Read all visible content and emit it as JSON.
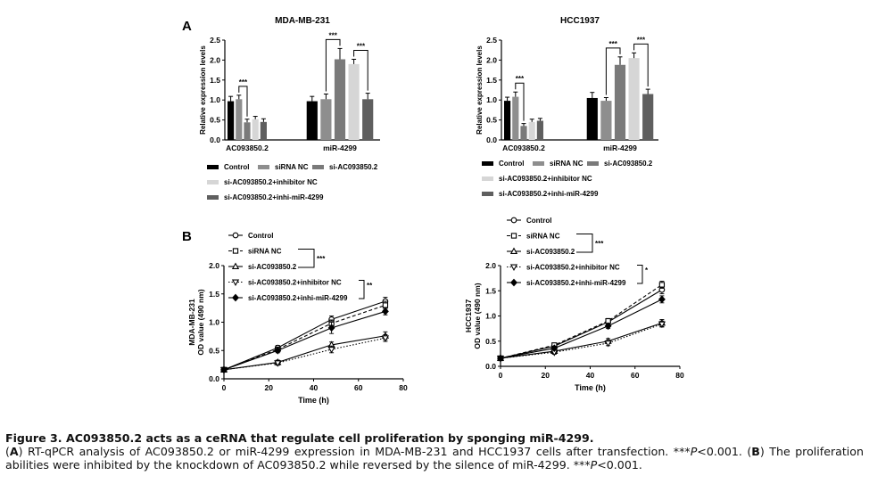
{
  "chart_data": [
    {
      "id": "A1",
      "type": "bar",
      "panel_label": "A",
      "title": "MDA-MB-231",
      "xlabel": "",
      "ylabel": "Relative expression levels",
      "ylim": [
        0,
        2.5
      ],
      "yticks": [
        "0.0",
        "0.5",
        "1.0",
        "1.5",
        "2.0",
        "2.5"
      ],
      "categories": [
        "AC093850.2",
        "miR-4299"
      ],
      "series": [
        {
          "name": "Control",
          "color": "#000000",
          "values": [
            0.97,
            0.97
          ],
          "errors": [
            0.12,
            0.12
          ]
        },
        {
          "name": "siRNA NC",
          "color": "#8e8e8e",
          "values": [
            1.02,
            1.02
          ],
          "errors": [
            0.1,
            0.13
          ]
        },
        {
          "name": "si-AC093850.2",
          "color": "#7a7a7a",
          "values": [
            0.44,
            2.02
          ],
          "errors": [
            0.08,
            0.27
          ]
        },
        {
          "name": "si-AC093850.2+inhibitor NC",
          "color": "#d6d6d6",
          "values": [
            0.52,
            1.9
          ],
          "errors": [
            0.07,
            0.12
          ]
        },
        {
          "name": "si-AC093850.2+inhi-miR-4299",
          "color": "#5f5f5f",
          "values": [
            0.45,
            1.02
          ],
          "errors": [
            0.08,
            0.15
          ]
        }
      ],
      "significance": [
        {
          "group": 0,
          "from": 1,
          "to": 2,
          "label": "***"
        },
        {
          "group": 1,
          "from": 1,
          "to": 2,
          "label": "***"
        },
        {
          "group": 1,
          "from": 3,
          "to": 4,
          "label": "***"
        }
      ],
      "legend_position": "below"
    },
    {
      "id": "A2",
      "type": "bar",
      "title": "HCC1937",
      "xlabel": "",
      "ylabel": "Relative expression levels",
      "ylim": [
        0,
        2.5
      ],
      "yticks": [
        "0.0",
        "0.5",
        "1.0",
        "1.5",
        "2.0",
        "2.5"
      ],
      "categories": [
        "AC093850.2",
        "miR-4299"
      ],
      "series": [
        {
          "name": "Control",
          "color": "#000000",
          "values": [
            0.98,
            1.05
          ],
          "errors": [
            0.09,
            0.14
          ]
        },
        {
          "name": "siRNA NC",
          "color": "#8e8e8e",
          "values": [
            1.08,
            0.98
          ],
          "errors": [
            0.12,
            0.08
          ]
        },
        {
          "name": "si-AC093850.2",
          "color": "#7a7a7a",
          "values": [
            0.35,
            1.88
          ],
          "errors": [
            0.06,
            0.2
          ]
        },
        {
          "name": "si-AC093850.2+inhibitor NC",
          "color": "#d6d6d6",
          "values": [
            0.45,
            2.05
          ],
          "errors": [
            0.07,
            0.13
          ]
        },
        {
          "name": "si-AC093850.2+inhi-miR-4299",
          "color": "#5f5f5f",
          "values": [
            0.48,
            1.15
          ],
          "errors": [
            0.06,
            0.12
          ]
        }
      ],
      "significance": [
        {
          "group": 0,
          "from": 1,
          "to": 2,
          "label": "***"
        },
        {
          "group": 1,
          "from": 1,
          "to": 2,
          "label": "***"
        },
        {
          "group": 1,
          "from": 3,
          "to": 4,
          "label": "***"
        }
      ],
      "legend_position": "below"
    },
    {
      "id": "B1",
      "type": "line",
      "panel_label": "B",
      "title": "",
      "xlabel": "Time (h)",
      "ylabel": "OD value (490 nm)",
      "ylabel_prefix": "MDA-MB-231",
      "xlim": [
        0,
        80
      ],
      "ylim": [
        0,
        2.0
      ],
      "xticks": [
        "0",
        "20",
        "40",
        "60",
        "80"
      ],
      "yticks": [
        "0.0",
        "0.5",
        "1.0",
        "1.5",
        "2.0"
      ],
      "x": [
        0,
        24,
        48,
        72
      ],
      "series": [
        {
          "name": "Control",
          "marker": "circle",
          "dash": "solid",
          "values": [
            0.16,
            0.55,
            1.05,
            1.37
          ],
          "errors": [
            0.03,
            0.04,
            0.06,
            0.07
          ]
        },
        {
          "name": "siRNA NC",
          "marker": "square",
          "dash": "dashed",
          "values": [
            0.16,
            0.52,
            0.98,
            1.3
          ],
          "errors": [
            0.03,
            0.04,
            0.06,
            0.07
          ]
        },
        {
          "name": "si-AC093850.2",
          "marker": "triangle",
          "dash": "solid",
          "values": [
            0.16,
            0.29,
            0.6,
            0.76
          ],
          "errors": [
            0.03,
            0.04,
            0.05,
            0.07
          ]
        },
        {
          "name": "si-AC093850.2+inhibitor NC",
          "marker": "triangle-down",
          "dash": "dotted",
          "values": [
            0.16,
            0.28,
            0.52,
            0.72
          ],
          "errors": [
            0.03,
            0.04,
            0.06,
            0.06
          ]
        },
        {
          "name": "si-AC093850.2+inhi-miR-4299",
          "marker": "diamond",
          "dash": "solid",
          "values": [
            0.16,
            0.5,
            0.9,
            1.19
          ],
          "errors": [
            0.03,
            0.04,
            0.1,
            0.06
          ]
        }
      ],
      "annotations": [
        {
          "label": "***",
          "text": "Control / siRNA NC vs si-AC093850.2"
        },
        {
          "label": "**",
          "text": "si-AC093850.2+inhibitor NC vs si-AC093850.2+inhi-miR-4299"
        }
      ],
      "legend_position": "top-left"
    },
    {
      "id": "B2",
      "type": "line",
      "title": "",
      "xlabel": "Time (h)",
      "ylabel": "OD value (490 nm)",
      "ylabel_prefix": "HCC1937",
      "xlim": [
        0,
        80
      ],
      "ylim": [
        0,
        2.0
      ],
      "xticks": [
        "0",
        "20",
        "40",
        "60",
        "80"
      ],
      "yticks": [
        "0.0",
        "0.5",
        "1.0",
        "1.5",
        "2.0"
      ],
      "x": [
        0,
        24,
        48,
        72
      ],
      "series": [
        {
          "name": "Control",
          "marker": "circle",
          "dash": "solid",
          "values": [
            0.16,
            0.4,
            0.88,
            1.52
          ],
          "errors": [
            0.03,
            0.04,
            0.05,
            0.08
          ]
        },
        {
          "name": "siRNA NC",
          "marker": "square",
          "dash": "dashed",
          "values": [
            0.16,
            0.42,
            0.9,
            1.62
          ],
          "errors": [
            0.03,
            0.04,
            0.05,
            0.07
          ]
        },
        {
          "name": "si-AC093850.2",
          "marker": "triangle",
          "dash": "solid",
          "values": [
            0.16,
            0.3,
            0.5,
            0.86
          ],
          "errors": [
            0.03,
            0.04,
            0.05,
            0.07
          ]
        },
        {
          "name": "si-AC093850.2+inhibitor NC",
          "marker": "triangle-down",
          "dash": "dotted",
          "values": [
            0.16,
            0.28,
            0.46,
            0.84
          ],
          "errors": [
            0.03,
            0.04,
            0.05,
            0.06
          ]
        },
        {
          "name": "si-AC093850.2+inhi-miR-4299",
          "marker": "diamond",
          "dash": "solid",
          "values": [
            0.16,
            0.36,
            0.8,
            1.33
          ],
          "errors": [
            0.03,
            0.04,
            0.05,
            0.07
          ]
        }
      ],
      "annotations": [
        {
          "label": "***",
          "text": "Control / siRNA NC vs si-AC093850.2"
        },
        {
          "label": "*",
          "text": "si-AC093850.2+inhibitor NC vs si-AC093850.2+inhi-miR-4299"
        }
      ],
      "legend_position": "top-left"
    }
  ],
  "caption": {
    "title": "Figure 3. AC093850.2 acts as a ceRNA that regulate cell proliferation by sponging miR-4299.",
    "parts": [
      {
        "t": "(",
        "s": "n"
      },
      {
        "t": "A",
        "s": "b"
      },
      {
        "t": ") RT-qPCR analysis of AC093850.2 or miR-4299 expression in MDA-MB-231 and HCC1937 cells after transfection. ***",
        "s": "n"
      },
      {
        "t": "P",
        "s": "i"
      },
      {
        "t": "<0.001. (",
        "s": "n"
      },
      {
        "t": "B",
        "s": "b"
      },
      {
        "t": ") The proliferation abilities were inhibited by the knockdown of AC093850.2 while reversed by the silence of miR-4299. ***",
        "s": "n"
      },
      {
        "t": "P",
        "s": "i"
      },
      {
        "t": "<0.001.",
        "s": "n"
      }
    ]
  }
}
